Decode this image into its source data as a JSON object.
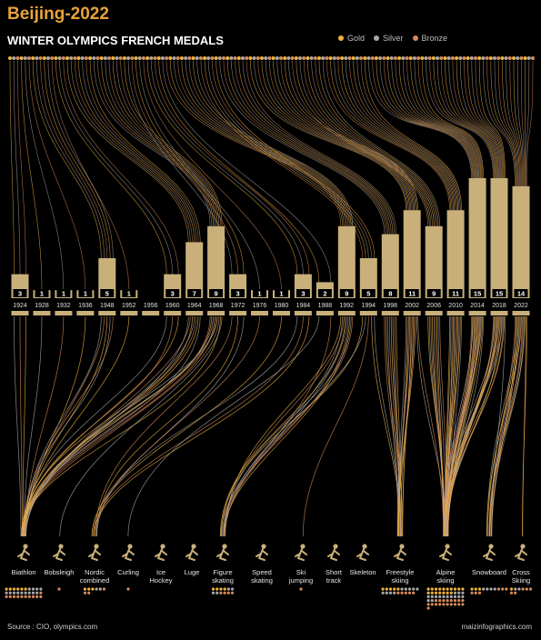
{
  "header": {
    "title": "Beijing-2022",
    "subtitle": "WINTER OLYMPICS FRENCH MEDALS"
  },
  "legend": [
    {
      "label": "Gold",
      "color": "#f0b43c"
    },
    {
      "label": "Silver",
      "color": "#a9a9a9"
    },
    {
      "label": "Bronze",
      "color": "#d88a5a"
    }
  ],
  "footer": {
    "source": "Source : CIO, olympics.com",
    "credit": "maizinfographics.com"
  },
  "colors": {
    "bar": "#c9b07a",
    "gold": "#f0b43c",
    "silver": "#a9a9a9",
    "bronze": "#d88a5a",
    "icon": "#c9b07a"
  },
  "chart_data": {
    "type": "bar",
    "title": "WINTER OLYMPICS FRENCH MEDALS",
    "categories": [
      "1924",
      "1928",
      "1932",
      "1936",
      "1948",
      "1952",
      "1956",
      "1960",
      "1964",
      "1968",
      "1972",
      "1976",
      "1980",
      "1984",
      "1988",
      "1992",
      "1994",
      "1998",
      "2002",
      "2006",
      "2010",
      "2014",
      "2018",
      "2022"
    ],
    "values": [
      3,
      1,
      1,
      1,
      5,
      1,
      0,
      3,
      7,
      9,
      3,
      1,
      1,
      3,
      2,
      9,
      5,
      8,
      11,
      9,
      11,
      15,
      15,
      14
    ],
    "value_labels": [
      "3",
      "1",
      "1",
      "1",
      "5",
      "1",
      "",
      "3",
      "7",
      "9",
      "3",
      "1",
      "1",
      "3",
      "2",
      "9",
      "5",
      "8",
      "11",
      "9",
      "11",
      "15",
      "15",
      "14"
    ],
    "ylim": [
      0,
      15
    ],
    "disciplines": [
      {
        "label": "Biathlon",
        "icon": "biathlon-icon"
      },
      {
        "label": "Bobsleigh",
        "icon": "bobsleigh-icon"
      },
      {
        "label": "Nordic\ncombined",
        "icon": "nordic-combined-icon"
      },
      {
        "label": "Curling",
        "icon": "curling-icon"
      },
      {
        "label": "Ice\nHockey",
        "icon": "ice-hockey-icon"
      },
      {
        "label": "Luge",
        "icon": "luge-icon"
      },
      {
        "label": "Figure\nskating",
        "icon": "figure-skating-icon"
      },
      {
        "label": "Speed\nskating",
        "icon": "speed-skating-icon"
      },
      {
        "label": "Ski\njumping",
        "icon": "ski-jumping-icon"
      },
      {
        "label": "Short\ntrack",
        "icon": "short-track-icon"
      },
      {
        "label": "Skeleton",
        "icon": "skeleton-icon"
      },
      {
        "label": "Freestyle\nskiing",
        "icon": "freestyle-skiing-icon"
      },
      {
        "label": "Alpine\nskiing",
        "icon": "alpine-skiing-icon"
      },
      {
        "label": "Snowboard",
        "icon": "snowboard-icon"
      },
      {
        "label": "Cross\nSkiing",
        "icon": "cross-skiing-icon"
      }
    ],
    "discipline_medals": [
      {
        "gold": 6,
        "silver": 13,
        "bronze": 11
      },
      {
        "gold": 0,
        "silver": 0,
        "bronze": 1
      },
      {
        "gold": 3,
        "silver": 2,
        "bronze": 3
      },
      {
        "gold": 0,
        "silver": 0,
        "bronze": 1
      },
      {
        "gold": 0,
        "silver": 0,
        "bronze": 0
      },
      {
        "gold": 0,
        "silver": 0,
        "bronze": 0
      },
      {
        "gold": 4,
        "silver": 4,
        "bronze": 4
      },
      {
        "gold": 0,
        "silver": 0,
        "bronze": 0
      },
      {
        "gold": 0,
        "silver": 0,
        "bronze": 1
      },
      {
        "gold": 0,
        "silver": 0,
        "bronze": 0
      },
      {
        "gold": 0,
        "silver": 0,
        "bronze": 0
      },
      {
        "gold": 5,
        "silver": 9,
        "bronze": 5
      },
      {
        "gold": 17,
        "silver": 15,
        "bronze": 19
      },
      {
        "gold": 3,
        "silver": 4,
        "bronze": 6
      },
      {
        "gold": 1,
        "silver": 2,
        "bronze": 5
      }
    ],
    "grid": false
  }
}
